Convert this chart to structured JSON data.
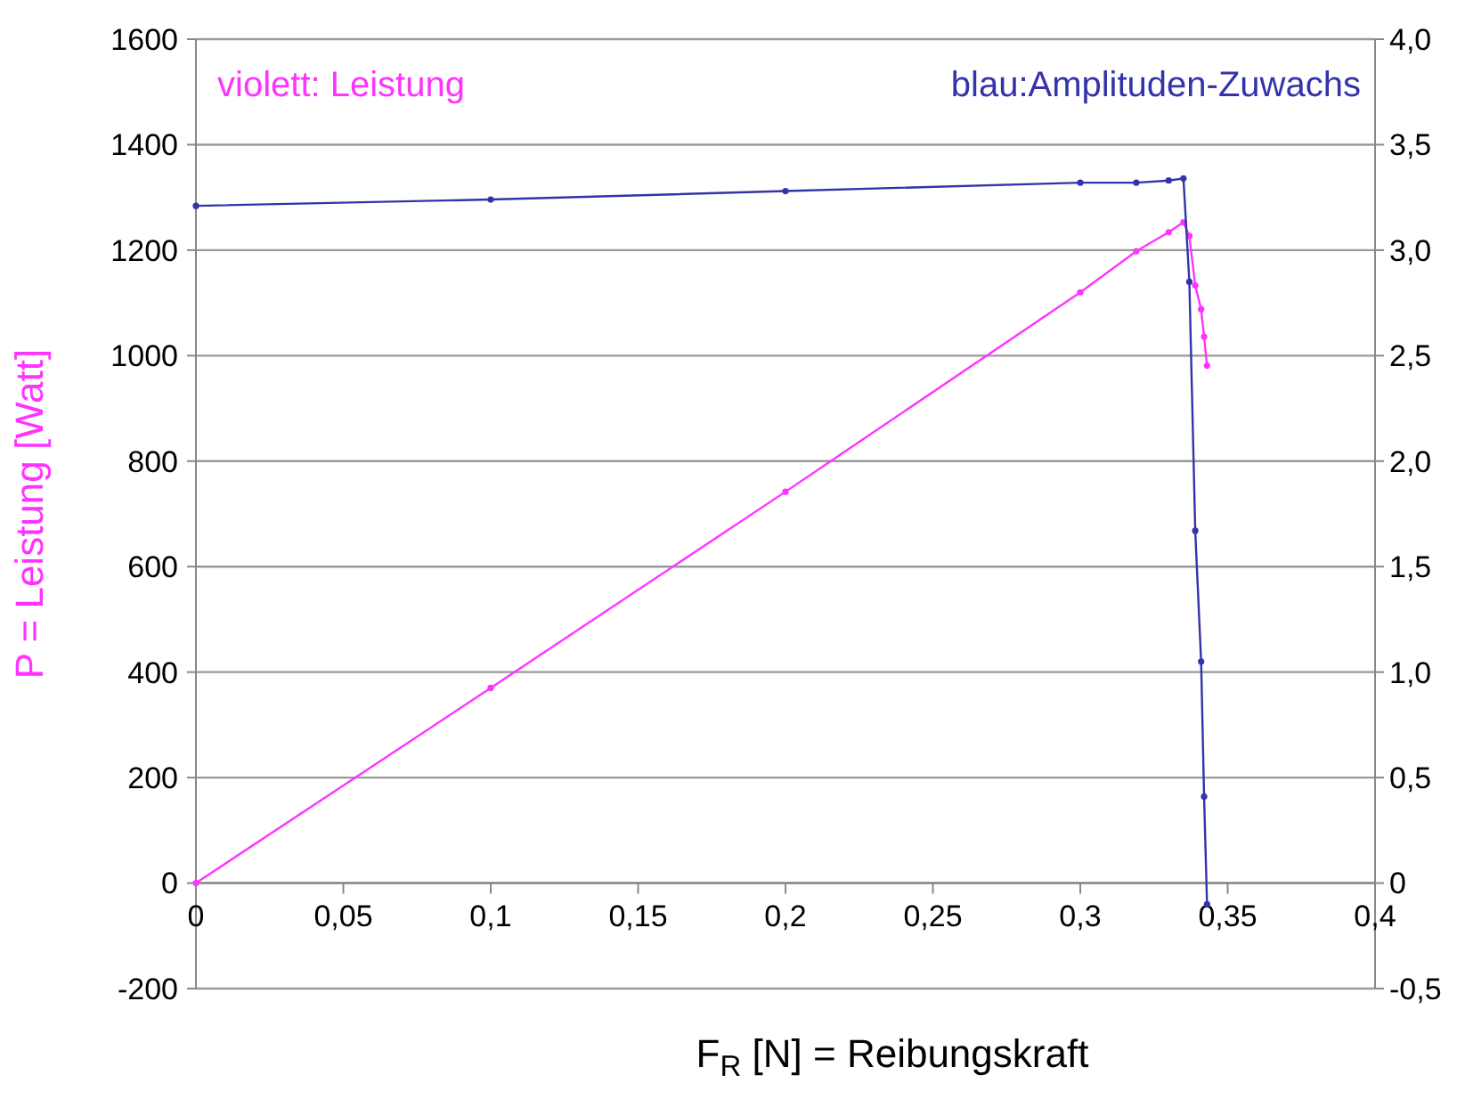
{
  "chart_data": {
    "type": "line",
    "xlabel": "F$_{R}$ [N] = Reibungskraft",
    "ylabel": "P = Leistung [Watt]",
    "xlim": [
      0,
      0.4
    ],
    "xticks": [
      0,
      {
        "value": 0.05,
        "label": "0,05"
      },
      {
        "value": 0.1,
        "label": "0,1"
      },
      {
        "value": 0.15,
        "label": "0,15"
      },
      {
        "value": 0.2,
        "label": "0,2"
      },
      {
        "value": 0.25,
        "label": "0,25"
      },
      {
        "value": 0.3,
        "label": "0,3"
      },
      {
        "value": 0.35,
        "label": "0,35"
      },
      {
        "value": 0.4,
        "label": "0,4"
      }
    ],
    "ylim": [
      -200,
      1600
    ],
    "yticks": [
      -200,
      0,
      200,
      400,
      600,
      800,
      1000,
      1200,
      1400,
      1600
    ],
    "y2lim": [
      -0.5,
      4
    ],
    "y2ticks": [
      {
        "value": -0.5,
        "label": "-0,5"
      },
      0,
      {
        "value": 0.5,
        "label": "0,5"
      },
      {
        "value": 1,
        "label": "1,0"
      },
      {
        "value": 1.5,
        "label": "1,5"
      },
      {
        "value": 2,
        "label": "2,0"
      },
      {
        "value": 2.5,
        "label": "2,5"
      },
      {
        "value": 3,
        "label": "3,0"
      },
      {
        "value": 3.5,
        "label": "3,5"
      },
      {
        "value": 4,
        "label": "4,0"
      }
    ],
    "grid": "y",
    "legend": "top",
    "marker": "circle",
    "line_style": "solid",
    "series": [
      {
        "name": "violett: Leistung",
        "color": "#ff33ff",
        "x": [
          0,
          0.1,
          0.2,
          0.3,
          0.319,
          0.33,
          0.335,
          0.337,
          0.339,
          0.341,
          0.342,
          0.343
        ],
        "values": [
          0,
          370,
          742,
          1120,
          1198,
          1234,
          1253,
          1227,
          1133,
          1088,
          1036,
          981
        ]
      },
      {
        "name": "blau:Amplituden-Zuwachs",
        "color": "#3333aa",
        "axis": "y2",
        "x": [
          0,
          0.1,
          0.2,
          0.3,
          0.319,
          0.33,
          0.335,
          0.337,
          0.339,
          0.341,
          0.342,
          0.343
        ],
        "values": [
          3.21,
          3.24,
          3.28,
          3.32,
          3.32,
          3.33,
          3.34,
          2.85,
          1.67,
          1.05,
          0.41,
          -0.1
        ]
      }
    ]
  }
}
